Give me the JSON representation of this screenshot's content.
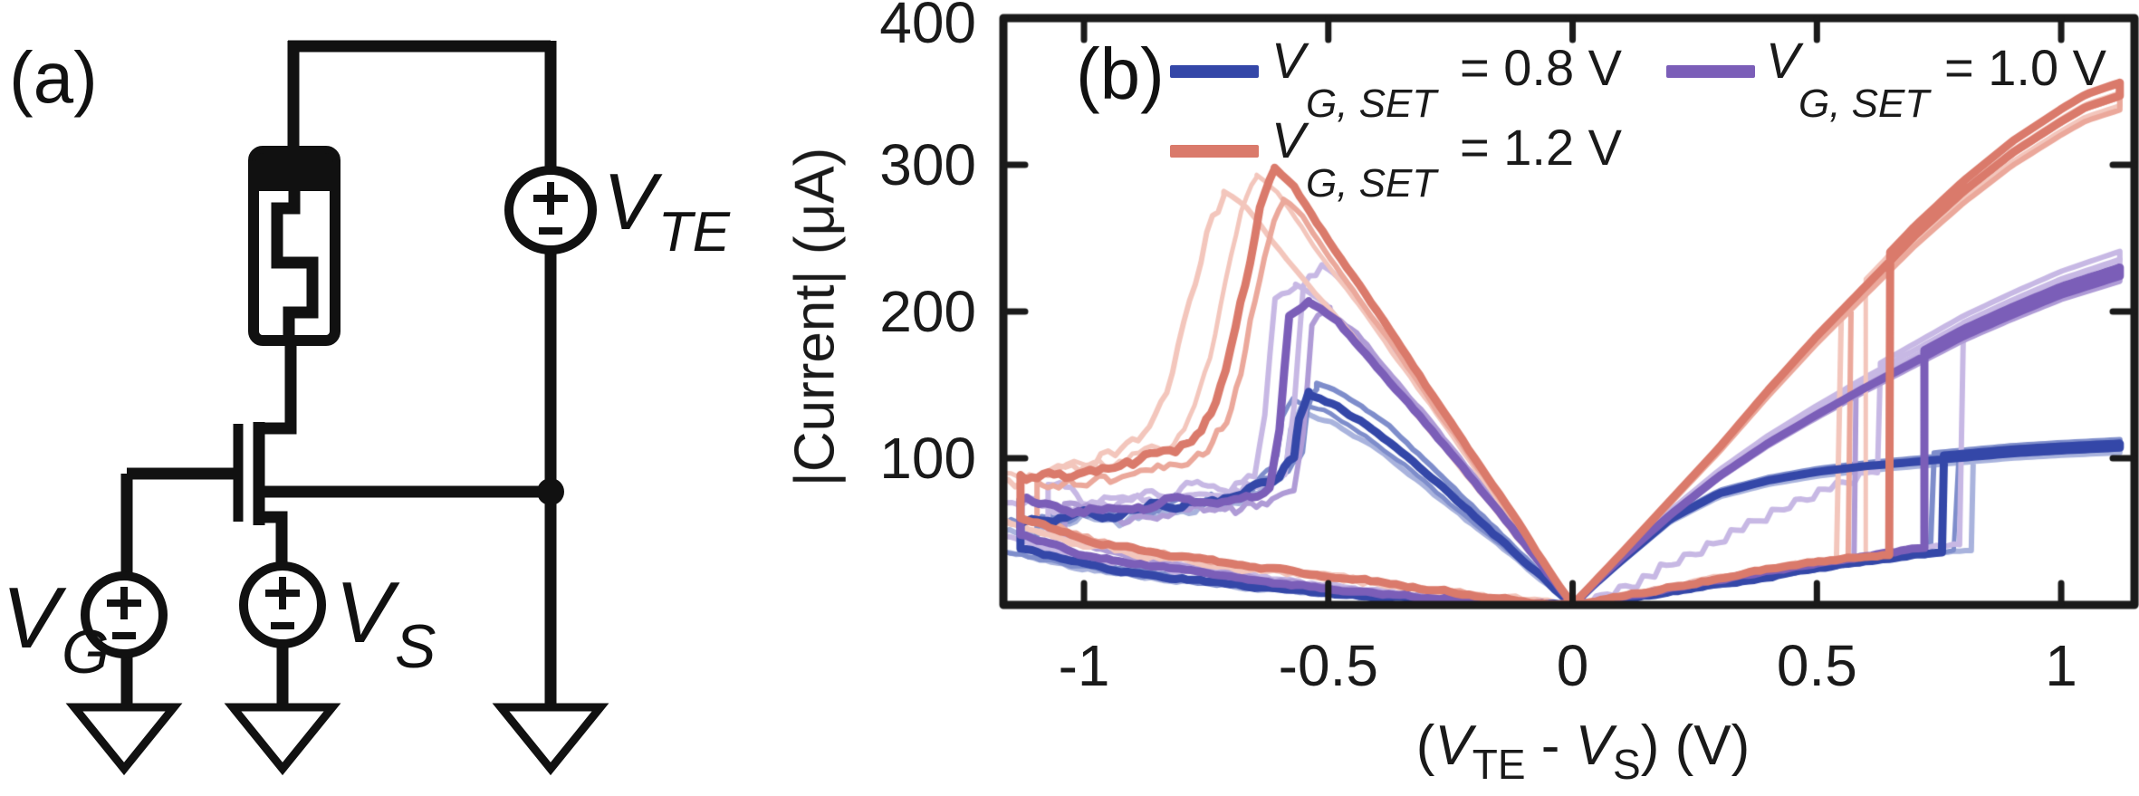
{
  "panel_a": {
    "label": "(a)",
    "labels": {
      "vg": {
        "sym": "V",
        "sub": "G"
      },
      "vs": {
        "sym": "V",
        "sub": "S"
      },
      "vte": {
        "sym": "V",
        "sub": "TE"
      }
    }
  },
  "panel_b": {
    "label": "(b)"
  },
  "chart_data": {
    "type": "line",
    "title": "",
    "ylabel": "|Current| (μA)",
    "xlabel_parts": {
      "open": "(",
      "v1": "V",
      "sub1": "TE",
      "minus": " - ",
      "v2": "V",
      "sub2": "S",
      "close": ") (V)"
    },
    "xlim": [
      -1.165,
      1.15
    ],
    "ylim": [
      0,
      400
    ],
    "xticks": [
      -1,
      -0.5,
      0,
      0.5,
      1
    ],
    "xtick_labels": [
      "-1",
      "-0.5",
      "0",
      "0.5",
      "1"
    ],
    "yticks": [
      100,
      200,
      300,
      400
    ],
    "ytick_labels": [
      "100",
      "200",
      "300",
      "400"
    ],
    "grid": false,
    "legend_position": "top-inside",
    "axis_color": "#1a1a1a",
    "legend": [
      {
        "sym": "V",
        "sub": "G, SET",
        "val": "= 0.8 V",
        "color": "#3447a8"
      },
      {
        "sym": "V",
        "sub": "G, SET",
        "val": "= 1.0 V",
        "color": "#7b5eb8"
      },
      {
        "sym": "V",
        "sub": "G, SET",
        "val": "= 1.2 V",
        "color": "#da7a6b"
      }
    ],
    "series": [
      {
        "name": "VG,SET = 0.8 V",
        "vg_set_V": 0.8,
        "colors": {
          "main": "#3447a8",
          "light": [
            "#7e8dcb",
            "#a9b3dd"
          ]
        },
        "branches": {
          "pos_hrs": [
            [
              0,
              0
            ],
            [
              0.1,
              4
            ],
            [
              0.2,
              9
            ],
            [
              0.3,
              14
            ],
            [
              0.4,
              19
            ],
            [
              0.5,
              25
            ],
            [
              0.6,
              30
            ],
            [
              0.7,
              34
            ],
            [
              0.8,
              37
            ],
            [
              0.9,
              39
            ]
          ],
          "pos_lrs": [
            [
              0,
              0
            ],
            [
              0.05,
              16
            ],
            [
              0.1,
              31
            ],
            [
              0.2,
              60
            ],
            [
              0.3,
              78
            ],
            [
              0.4,
              87
            ],
            [
              0.5,
              93
            ],
            [
              0.6,
              97
            ],
            [
              0.7,
              100
            ],
            [
              0.8,
              103
            ],
            [
              0.9,
              106
            ],
            [
              1.0,
              108
            ],
            [
              1.12,
              110
            ]
          ],
          "neg_rise": [
            [
              0,
              0
            ],
            [
              -0.1,
              30
            ],
            [
              -0.2,
              60
            ],
            [
              -0.3,
              90
            ],
            [
              -0.4,
              118
            ],
            [
              -0.48,
              135
            ],
            [
              -0.54,
              143
            ]
          ],
          "neg_decay": [
            [
              -0.54,
              143
            ],
            [
              -0.56,
              128
            ],
            [
              -0.57,
              100
            ],
            [
              -0.6,
              88
            ],
            [
              -0.65,
              80
            ],
            [
              -0.7,
              74
            ],
            [
              -0.75,
              70
            ],
            [
              -0.8,
              66
            ],
            [
              -0.85,
              68
            ],
            [
              -0.9,
              63
            ],
            [
              -0.95,
              60
            ],
            [
              -1.0,
              62
            ],
            [
              -1.05,
              58
            ],
            [
              -1.13,
              55
            ]
          ],
          "neg_return": [
            [
              -1.13,
              38
            ],
            [
              -1.0,
              28
            ],
            [
              -0.9,
              22
            ],
            [
              -0.8,
              18
            ],
            [
              -0.7,
              14
            ],
            [
              -0.6,
              11
            ],
            [
              -0.5,
              8
            ],
            [
              -0.4,
              6
            ],
            [
              -0.3,
              4
            ],
            [
              -0.2,
              2
            ],
            [
              -0.1,
              1
            ],
            [
              0,
              0
            ]
          ]
        },
        "set_voltages_V": [
          0.74,
          0.76,
          0.79,
          0.82
        ],
        "cycles": [
          {
            "c": 2,
            "w": 6,
            "jv": 0.82,
            "pxs": 1.03,
            "pys": 0.92,
            "nz": 7,
            "seed": 11
          },
          {
            "c": 1,
            "w": 6,
            "jv": 0.74,
            "pxs": 0.97,
            "pys": 1.06,
            "nz": 8,
            "seed": 12
          },
          {
            "c": 1,
            "w": 5,
            "jv": 0.79,
            "pxs": 1.06,
            "pys": 0.98,
            "nz": 6,
            "seed": 13
          },
          {
            "c": 0,
            "w": 9,
            "jv": 0.76,
            "pxs": 1.0,
            "pys": 1.0,
            "nz": 5,
            "seed": 14
          }
        ]
      },
      {
        "name": "VG,SET = 1.0 V",
        "vg_set_V": 1.0,
        "colors": {
          "main": "#7b5eb8",
          "light": [
            "#af9bd6",
            "#c7b8e4"
          ]
        },
        "branches": {
          "pos_hrs": [
            [
              0,
              0
            ],
            [
              0.1,
              5
            ],
            [
              0.2,
              11
            ],
            [
              0.3,
              17
            ],
            [
              0.4,
              23
            ],
            [
              0.5,
              28
            ],
            [
              0.6,
              33
            ],
            [
              0.7,
              38
            ],
            [
              0.8,
              42
            ],
            [
              0.9,
              44
            ]
          ],
          "pos_lrs": [
            [
              0,
              0
            ],
            [
              0.05,
              17
            ],
            [
              0.1,
              33
            ],
            [
              0.2,
              63
            ],
            [
              0.3,
              90
            ],
            [
              0.4,
              113
            ],
            [
              0.5,
              133
            ],
            [
              0.6,
              152
            ],
            [
              0.7,
              170
            ],
            [
              0.8,
              188
            ],
            [
              0.9,
              203
            ],
            [
              1.0,
              217
            ],
            [
              1.12,
              230
            ]
          ],
          "neg_rise": [
            [
              0,
              0
            ],
            [
              -0.1,
              42
            ],
            [
              -0.2,
              84
            ],
            [
              -0.3,
              124
            ],
            [
              -0.4,
              162
            ],
            [
              -0.48,
              193
            ],
            [
              -0.54,
              207
            ]
          ],
          "neg_decay": [
            [
              -0.54,
              207
            ],
            [
              -0.58,
              198
            ],
            [
              -0.6,
              120
            ],
            [
              -0.62,
              80
            ],
            [
              -0.68,
              72
            ],
            [
              -0.75,
              68
            ],
            [
              -0.82,
              72
            ],
            [
              -0.9,
              65
            ],
            [
              -1.0,
              62
            ],
            [
              -1.08,
              68
            ],
            [
              -1.13,
              72
            ]
          ],
          "neg_return": [
            [
              -1.13,
              48
            ],
            [
              -1.0,
              34
            ],
            [
              -0.85,
              26
            ],
            [
              -0.7,
              19
            ],
            [
              -0.55,
              13
            ],
            [
              -0.4,
              8
            ],
            [
              -0.25,
              4
            ],
            [
              -0.1,
              1
            ],
            [
              0,
              0
            ]
          ]
        },
        "set_voltages_V": [
          0.58,
          0.63,
          0.72,
          0.8
        ],
        "cycles": [
          {
            "c": 2,
            "w": 6,
            "jv": 0.63,
            "pxs": 0.95,
            "pys": 1.12,
            "nz": 9,
            "seed": 21,
            "hrs": 2.8,
            "stair": true
          },
          {
            "c": 2,
            "w": 6,
            "jv": 0.8,
            "pxs": 1.05,
            "pys": 1.06,
            "nz": 8,
            "seed": 22
          },
          {
            "c": 1,
            "w": 6,
            "jv": 0.58,
            "pxs": 0.92,
            "pys": 0.96,
            "nz": 7,
            "seed": 23
          },
          {
            "c": 0,
            "w": 9,
            "jv": 0.72,
            "pxs": 1.0,
            "pys": 1.0,
            "nz": 5,
            "seed": 24
          }
        ]
      },
      {
        "name": "VG,SET = 1.2 V",
        "vg_set_V": 1.2,
        "colors": {
          "main": "#da7a6b",
          "light": [
            "#eba89b",
            "#f3c6bc"
          ]
        },
        "branches": {
          "pos_hrs": [
            [
              0,
              0
            ],
            [
              0.1,
              6
            ],
            [
              0.2,
              12
            ],
            [
              0.3,
              18
            ],
            [
              0.4,
              24
            ],
            [
              0.5,
              29
            ],
            [
              0.6,
              33
            ],
            [
              0.7,
              36
            ],
            [
              0.9,
              40
            ]
          ],
          "pos_lrs": [
            [
              0,
              0
            ],
            [
              0.05,
              18
            ],
            [
              0.1,
              36
            ],
            [
              0.2,
              73
            ],
            [
              0.3,
              110
            ],
            [
              0.4,
              150
            ],
            [
              0.5,
              188
            ],
            [
              0.6,
              223
            ],
            [
              0.7,
              258
            ],
            [
              0.8,
              289
            ],
            [
              0.9,
              316
            ],
            [
              1.0,
              338
            ],
            [
              1.05,
              348
            ],
            [
              1.12,
              356
            ]
          ],
          "neg_rise": [
            [
              0,
              0
            ],
            [
              -0.1,
              50
            ],
            [
              -0.2,
              100
            ],
            [
              -0.3,
              150
            ],
            [
              -0.4,
              200
            ],
            [
              -0.5,
              248
            ],
            [
              -0.57,
              285
            ],
            [
              -0.61,
              297
            ]
          ],
          "neg_decay": [
            [
              -0.61,
              297
            ],
            [
              -0.64,
              268
            ],
            [
              -0.66,
              235
            ],
            [
              -0.68,
              205
            ],
            [
              -0.7,
              172
            ],
            [
              -0.72,
              148
            ],
            [
              -0.74,
              128
            ],
            [
              -0.77,
              115
            ],
            [
              -0.8,
              108
            ],
            [
              -0.85,
              100
            ],
            [
              -0.9,
              97
            ],
            [
              -0.95,
              95
            ],
            [
              -1.0,
              92
            ],
            [
              -1.05,
              90
            ],
            [
              -1.13,
              88
            ]
          ],
          "neg_return": [
            [
              -1.13,
              60
            ],
            [
              -1.0,
              45
            ],
            [
              -0.9,
              38
            ],
            [
              -0.8,
              33
            ],
            [
              -0.7,
              28
            ],
            [
              -0.6,
              24
            ],
            [
              -0.5,
              20
            ],
            [
              -0.4,
              16
            ],
            [
              -0.3,
              11
            ],
            [
              -0.2,
              7
            ],
            [
              -0.1,
              3
            ],
            [
              0,
              0
            ]
          ]
        },
        "set_voltages_V": [
          0.55,
          0.57,
          0.6,
          0.65
        ],
        "cycles": [
          {
            "c": 2,
            "w": 6,
            "jv": 0.55,
            "pxs": 1.17,
            "pys": 0.95,
            "nz": 12,
            "seed": 31
          },
          {
            "c": 2,
            "w": 5,
            "jv": 0.6,
            "pxs": 1.06,
            "pys": 0.99,
            "nz": 9,
            "seed": 32
          },
          {
            "c": 1,
            "w": 6,
            "jv": 0.57,
            "pxs": 0.97,
            "pys": 0.93,
            "nz": 8,
            "seed": 33
          },
          {
            "c": 0,
            "w": 9,
            "jv": 0.65,
            "pxs": 1.0,
            "pys": 1.0,
            "nz": 6,
            "seed": 34
          }
        ]
      }
    ]
  }
}
